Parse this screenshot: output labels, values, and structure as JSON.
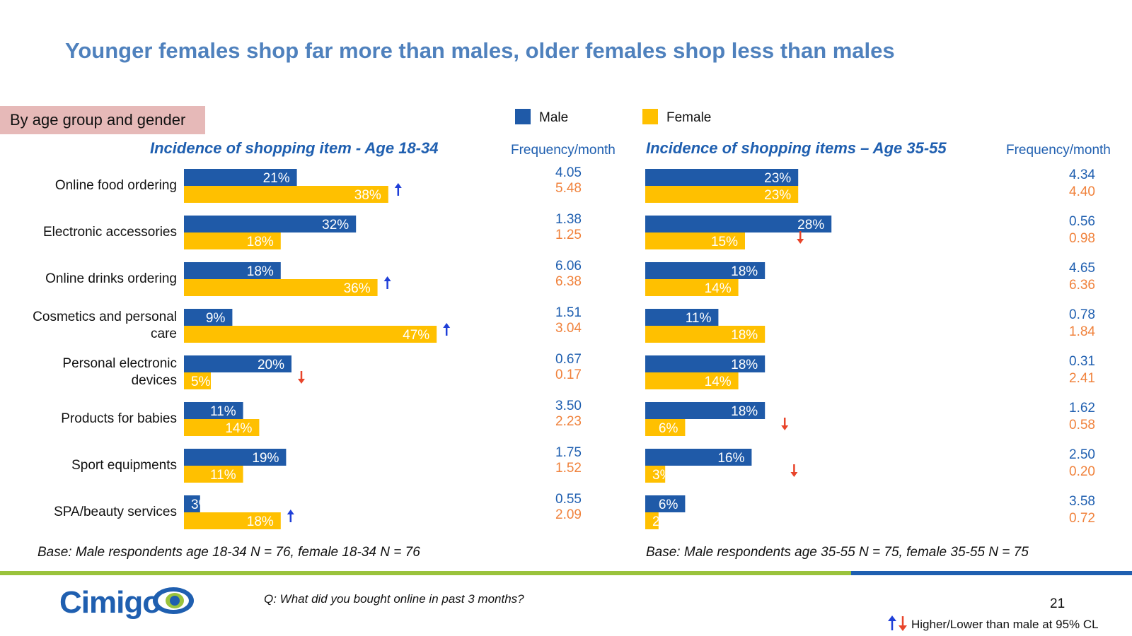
{
  "title": "Younger females shop far more than males, older females shop less than males",
  "tag": "By age group and gender",
  "legend": {
    "male": "Male",
    "female": "Female",
    "colors": {
      "male": "#1f5aa8",
      "female": "#ffc000"
    }
  },
  "freq_header": "Frequency/month",
  "categories": [
    [
      "Online food ordering"
    ],
    [
      "Electronic accessories"
    ],
    [
      "Online drinks ordering"
    ],
    [
      "Cosmetics and personal",
      "care"
    ],
    [
      "Personal electronic",
      "devices"
    ],
    [
      "Products for babies"
    ],
    [
      "Sport equipments"
    ],
    [
      "SPA/beauty services"
    ]
  ],
  "chart_data": [
    {
      "type": "bar",
      "title": "Incidence of shopping item - Age 18-34",
      "categories": [
        "Online food ordering",
        "Electronic accessories",
        "Online drinks ordering",
        "Cosmetics and personal care",
        "Personal electronic devices",
        "Products for babies",
        "Sport equipments",
        "SPA/beauty services"
      ],
      "series": [
        {
          "name": "Male",
          "values": [
            21,
            32,
            18,
            9,
            20,
            11,
            19,
            3
          ],
          "labels": [
            "21%",
            "32%",
            "18%",
            "9%",
            "20%",
            "11%",
            "19%",
            "3%"
          ]
        },
        {
          "name": "Female",
          "values": [
            38,
            18,
            36,
            47,
            5,
            14,
            11,
            18
          ],
          "labels": [
            "38%",
            "18%",
            "36%",
            "47%",
            "5%",
            "14%",
            "11%",
            "18%"
          ]
        }
      ],
      "significance": [
        "up",
        "",
        "up",
        "up",
        "down",
        "",
        "",
        "up"
      ],
      "frequency": {
        "male": [
          "4.05",
          "1.38",
          "6.06",
          "1.51",
          "0.67",
          "3.50",
          "1.75",
          "0.55"
        ],
        "female": [
          "5.48",
          "1.25",
          "6.38",
          "3.04",
          "0.17",
          "2.23",
          "1.52",
          "2.09"
        ]
      },
      "base": "Base: Male respondents age 18-34 N = 76, female 18-34 N = 76"
    },
    {
      "type": "bar",
      "title": "Incidence of shopping items – Age 35-55",
      "categories": [
        "Online food ordering",
        "Electronic accessories",
        "Online drinks ordering",
        "Cosmetics and personal care",
        "Personal electronic devices",
        "Products for babies",
        "Sport equipments",
        "SPA/beauty services"
      ],
      "series": [
        {
          "name": "Male",
          "values": [
            23,
            28,
            18,
            11,
            18,
            18,
            16,
            6
          ],
          "labels": [
            "23%",
            "28%",
            "18%",
            "11%",
            "18%",
            "18%",
            "16%",
            "6%"
          ]
        },
        {
          "name": "Female",
          "values": [
            23,
            15,
            14,
            18,
            14,
            6,
            3,
            2
          ],
          "labels": [
            "23%",
            "15%",
            "14%",
            "18%",
            "14%",
            "6%",
            "3%",
            "2%"
          ]
        }
      ],
      "significance": [
        "",
        "down",
        "",
        "",
        "",
        "down",
        "down",
        ""
      ],
      "frequency": {
        "male": [
          "4.34",
          "0.56",
          "4.65",
          "0.78",
          "0.31",
          "1.62",
          "2.50",
          "3.58"
        ],
        "female": [
          "4.40",
          "0.98",
          "6.36",
          "1.84",
          "2.41",
          "0.58",
          "0.20",
          "0.72"
        ]
      },
      "base": "Base: Male respondents age 35-55 N = 75, female 35-55 N = 75"
    }
  ],
  "footer": {
    "logo": "Cimigo",
    "question": "Q: What did you bought online in past 3 months?",
    "page": "21",
    "note": "Higher/Lower than male at 95% CL",
    "significance_colors": {
      "up": "#1f3fd8",
      "down": "#e8442a"
    }
  }
}
